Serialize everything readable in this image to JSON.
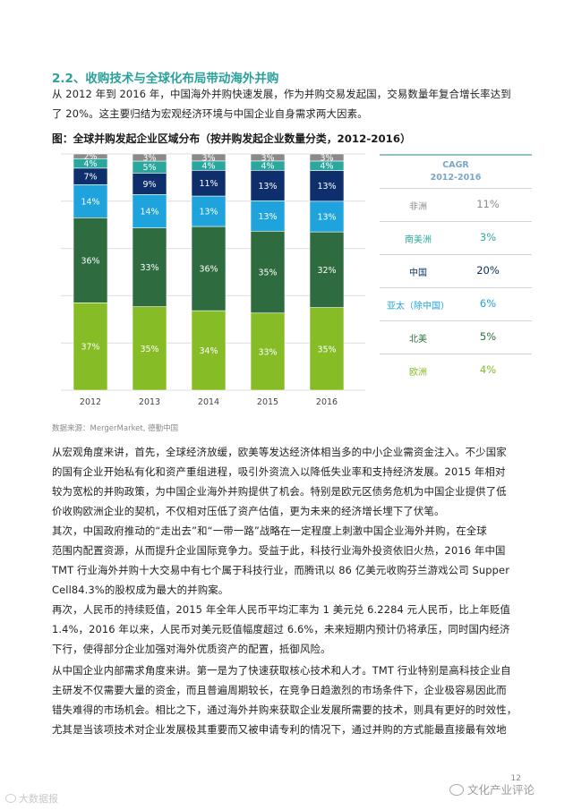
{
  "section_heading": "2.2、收购技术与全球化布局带动海外并购",
  "intro_lines": [
    "从 2012 年到 2016 年，中国海外并购快速发展，作为并购交易发起国，交易数量年复合增长率达到",
    "了 20%。这主要归结为宏观经济环境与中国企业自身需求两大因素。"
  ],
  "chart_title": "图：全球并购发起企业区域分布（按并购发起企业数量分类，2012-2016）",
  "source_note": "数据来源：MergerMarket, 德勤中国",
  "chart_data": {
    "type": "bar",
    "stacked": true,
    "percent_stacked": true,
    "categories": [
      "2012",
      "2013",
      "2014",
      "2015",
      "2016"
    ],
    "series": [
      {
        "name": "欧洲",
        "color": "#86bc25",
        "values": [
          37,
          35,
          34,
          33,
          35
        ],
        "labels": [
          "37%",
          "35%",
          "34%",
          "33%",
          "35%"
        ]
      },
      {
        "name": "北美",
        "color": "#2e6b3f",
        "values": [
          36,
          33,
          36,
          35,
          32
        ],
        "labels": [
          "36%",
          "33%",
          "36%",
          "35%",
          "32%"
        ]
      },
      {
        "name": "亚太（除中国）",
        "color": "#1ea3dc",
        "values": [
          14,
          14,
          13,
          13,
          13
        ],
        "labels": [
          "14%",
          "14%",
          "13%",
          "13%",
          "13%"
        ]
      },
      {
        "name": "中国",
        "color": "#0e2f6b",
        "values": [
          7,
          9,
          11,
          13,
          13
        ],
        "labels": [
          "7%",
          "9%",
          "11%",
          "13%",
          "13%"
        ]
      },
      {
        "name": "南美洲",
        "color": "#2ba89e",
        "values": [
          4,
          5,
          4,
          4,
          4
        ],
        "labels": [
          "4%",
          "5%",
          "4%",
          "4%",
          "4%"
        ]
      },
      {
        "name": "非洲",
        "color": "#8a8a8a",
        "values": [
          2,
          3,
          3,
          3,
          3
        ],
        "labels": [
          "2%",
          "3%",
          "3%",
          "3%",
          "3%"
        ]
      }
    ],
    "ylim": [
      0,
      100
    ],
    "grid": true
  },
  "cagr_table": {
    "header_line1": "CAGR",
    "header_line2": "2012-2016",
    "rows": [
      {
        "region": "非洲",
        "value": "11%",
        "name_color": "#8a8a8a",
        "value_color": "#8a8a8a"
      },
      {
        "region": "南美洲",
        "value": "3%",
        "name_color": "#2ba89e",
        "value_color": "#2ba89e"
      },
      {
        "region": "中国",
        "value": "20%",
        "name_color": "#0e2f6b",
        "value_color": "#0e2f6b"
      },
      {
        "region": "亚太（除中国）",
        "value": "6%",
        "name_color": "#1ea3dc",
        "value_color": "#1ea3dc"
      },
      {
        "region": "北美",
        "value": "5%",
        "name_color": "#2e6b3f",
        "value_color": "#2e6b3f"
      },
      {
        "region": "欧洲",
        "value": "4%",
        "name_color": "#86bc25",
        "value_color": "#86bc25"
      }
    ]
  },
  "para1_lines": [
    "从宏观角度来讲，首先，全球经济放缓，欧美等发达经济体相当多的中小企业需资金注入。不少国家",
    "的国有企业开始私有化和资产重组进程，吸引外资流入以降低失业率和支持经济发展。2015 年相对",
    "较为宽松的并购政策，为中国企业海外并购提供了机会。特别是欧元区债务危机为中国企业提供了低",
    "价收购欧洲企业的契机，不仅相对压低了资产估值，更为未来的经济增长埋下了伏笔。"
  ],
  "para2_lines": [
    "其次，中国政府推动的“走出去”和“一带一路”战略在一定程度上刺激中国企业海外并购，在全球",
    "范围内配置资源，从而提升企业国际竞争力。受益于此，科技行业海外投资依旧火热，2016 年中国",
    "TMT 行业海外并购十大交易中有七个属于科技行业，而腾讯以 86 亿美元收购芬兰游戏公司 Supper",
    "Cell84.3%的股权成为最大的并购案。"
  ],
  "para3_lines": [
    "再次，人民币的持续贬值，2015 年全年人民币平均汇率为 1 美元兑 6.2284 元人民币，比上年贬值",
    "1.4%，2016 年以来，人民币对美元贬值幅度超过 6.6%，未来短期内预计仍将承压，同时国内经济",
    "下行，使得部分企业加强对海外优质资产的配置，抵御风险。"
  ],
  "para4_lines": [
    "从中国企业内部需求角度来讲。第一是为了快速获取核心技术和人才。TMT 行业特别是高科技企业自",
    "主研发不仅需要大量的资金，而且普遍周期较长，在竞争日趋激烈的市场条件下，企业极容易因此而",
    "错失难得的市场机会。相比之下，通过海外并购来获取企业发展所需要的技术，则具有更好的时效性，",
    "尤其是当该项技术对企业发展极其重要而又被申请专利的情况下，通过并购的方式能最直接最有效地"
  ],
  "page_number": "12",
  "watermark_right": "文化产业评论",
  "watermark_left": "大数据报"
}
